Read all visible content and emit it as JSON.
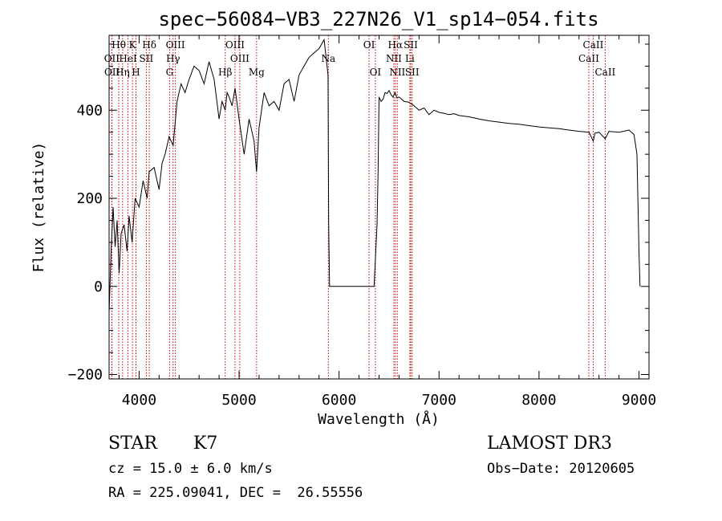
{
  "chart_data": {
    "type": "line",
    "title": "spec−56084−VB3_227N26_V1_sp14−054.fits",
    "xlabel": "Wavelength (Å)",
    "ylabel": "Flux (relative)",
    "xlim": [
      3700,
      9100
    ],
    "ylim": [
      -210,
      570
    ],
    "xticks": [
      4000,
      5000,
      6000,
      7000,
      8000,
      9000
    ],
    "yticks": [
      -200,
      0,
      200,
      400
    ],
    "xtick_labels": [
      "4000",
      "5000",
      "6000",
      "7000",
      "8000",
      "9000"
    ],
    "ytick_labels": [
      "−200",
      "0",
      "200",
      "400"
    ],
    "grid": false,
    "line_color": "#000000",
    "marker_color": "#cc0000",
    "series": [
      {
        "x": [
          3700,
          3720,
          3740,
          3760,
          3780,
          3800,
          3820,
          3850,
          3880,
          3900,
          3930,
          3960,
          4000,
          4040,
          4080,
          4100,
          4150,
          4200,
          4230,
          4260,
          4300,
          4340,
          4380,
          4420,
          4460,
          4500,
          4550,
          4600,
          4650,
          4700,
          4750,
          4800,
          4830,
          4861,
          4880,
          4900,
          4930,
          4960,
          5000,
          5050,
          5100,
          5150,
          5175,
          5200,
          5250,
          5300,
          5350,
          5400,
          5450,
          5500,
          5550,
          5600,
          5650,
          5700,
          5750,
          5800,
          5850,
          5880,
          5890,
          5896,
          5905,
          5915,
          6200,
          6350,
          6380,
          6390,
          6400,
          6420,
          6440,
          6460,
          6480,
          6500,
          6520,
          6540,
          6560,
          6580,
          6600,
          6650,
          6700,
          6750,
          6800,
          6850,
          6900,
          6950,
          7000,
          7050,
          7100,
          7150,
          7200,
          7300,
          7400,
          7500,
          7600,
          7700,
          7800,
          7900,
          8000,
          8100,
          8200,
          8300,
          8400,
          8500,
          8542,
          8560,
          8600,
          8662,
          8700,
          8800,
          8900,
          8950,
          8980,
          9000,
          9010
        ],
        "y": [
          -60,
          80,
          180,
          90,
          150,
          30,
          120,
          140,
          80,
          160,
          100,
          200,
          180,
          240,
          200,
          260,
          270,
          220,
          280,
          300,
          340,
          320,
          420,
          460,
          440,
          470,
          500,
          490,
          460,
          510,
          470,
          380,
          420,
          400,
          440,
          430,
          410,
          450,
          380,
          300,
          380,
          330,
          260,
          360,
          440,
          410,
          420,
          400,
          460,
          470,
          420,
          480,
          500,
          520,
          530,
          540,
          560,
          500,
          480,
          140,
          0,
          0,
          0,
          0,
          140,
          260,
          430,
          420,
          425,
          440,
          438,
          445,
          435,
          430,
          440,
          428,
          430,
          420,
          418,
          410,
          400,
          405,
          390,
          400,
          395,
          393,
          390,
          392,
          388,
          385,
          380,
          376,
          373,
          370,
          368,
          365,
          362,
          360,
          358,
          355,
          352,
          350,
          330,
          348,
          350,
          335,
          352,
          350,
          355,
          345,
          300,
          80,
          0
        ]
      }
    ],
    "lines": [
      {
        "label": "Hθ",
        "x": 3797,
        "row": 0
      },
      {
        "label": "OII",
        "x": 3727,
        "row": 1
      },
      {
        "label": "OII",
        "x": 3729,
        "row": 2
      },
      {
        "label": "K",
        "x": 3934,
        "row": 0
      },
      {
        "label": "HeI",
        "x": 3889,
        "row": 1
      },
      {
        "label": "Hη",
        "x": 3835,
        "row": 2
      },
      {
        "label": "Hδ",
        "x": 4102,
        "row": 0
      },
      {
        "label": "SII",
        "x": 4072,
        "row": 1
      },
      {
        "label": "H",
        "x": 3969,
        "row": 2
      },
      {
        "label": "OIII",
        "x": 4363,
        "row": 0
      },
      {
        "label": "Hγ",
        "x": 4340,
        "row": 1
      },
      {
        "label": "G",
        "x": 4305,
        "row": 2
      },
      {
        "label": "OIII",
        "x": 4959,
        "row": 0
      },
      {
        "label": "OIII",
        "x": 5007,
        "row": 1
      },
      {
        "label": "Hβ",
        "x": 4861,
        "row": 3
      },
      {
        "label": "Mg",
        "x": 5175,
        "row": 3
      },
      {
        "label": "Na",
        "x": 5893,
        "row": 1
      },
      {
        "label": "OI",
        "x": 6300,
        "row": 0
      },
      {
        "label": "OI",
        "x": 6363,
        "row": 2
      },
      {
        "label": "Hα",
        "x": 6563,
        "row": 0
      },
      {
        "label": "SII",
        "x": 6717,
        "row": 0
      },
      {
        "label": "NII",
        "x": 6548,
        "row": 1
      },
      {
        "label": "Li",
        "x": 6708,
        "row": 1
      },
      {
        "label": "NII",
        "x": 6583,
        "row": 2
      },
      {
        "label": "SII",
        "x": 6731,
        "row": 2
      },
      {
        "label": "CaII",
        "x": 8542,
        "row": 0
      },
      {
        "label": "CaII",
        "x": 8498,
        "row": 1
      },
      {
        "label": "CaII",
        "x": 8662,
        "row": 2
      }
    ]
  },
  "footer": {
    "object_class": "STAR",
    "subclass": "K7",
    "survey": "LAMOST DR3",
    "cz": "cz = 15.0 ± 6.0 km/s",
    "obs_date": "Obs−Date: 20120605",
    "coords": "RA = 225.09041, DEC =  26.55556"
  }
}
